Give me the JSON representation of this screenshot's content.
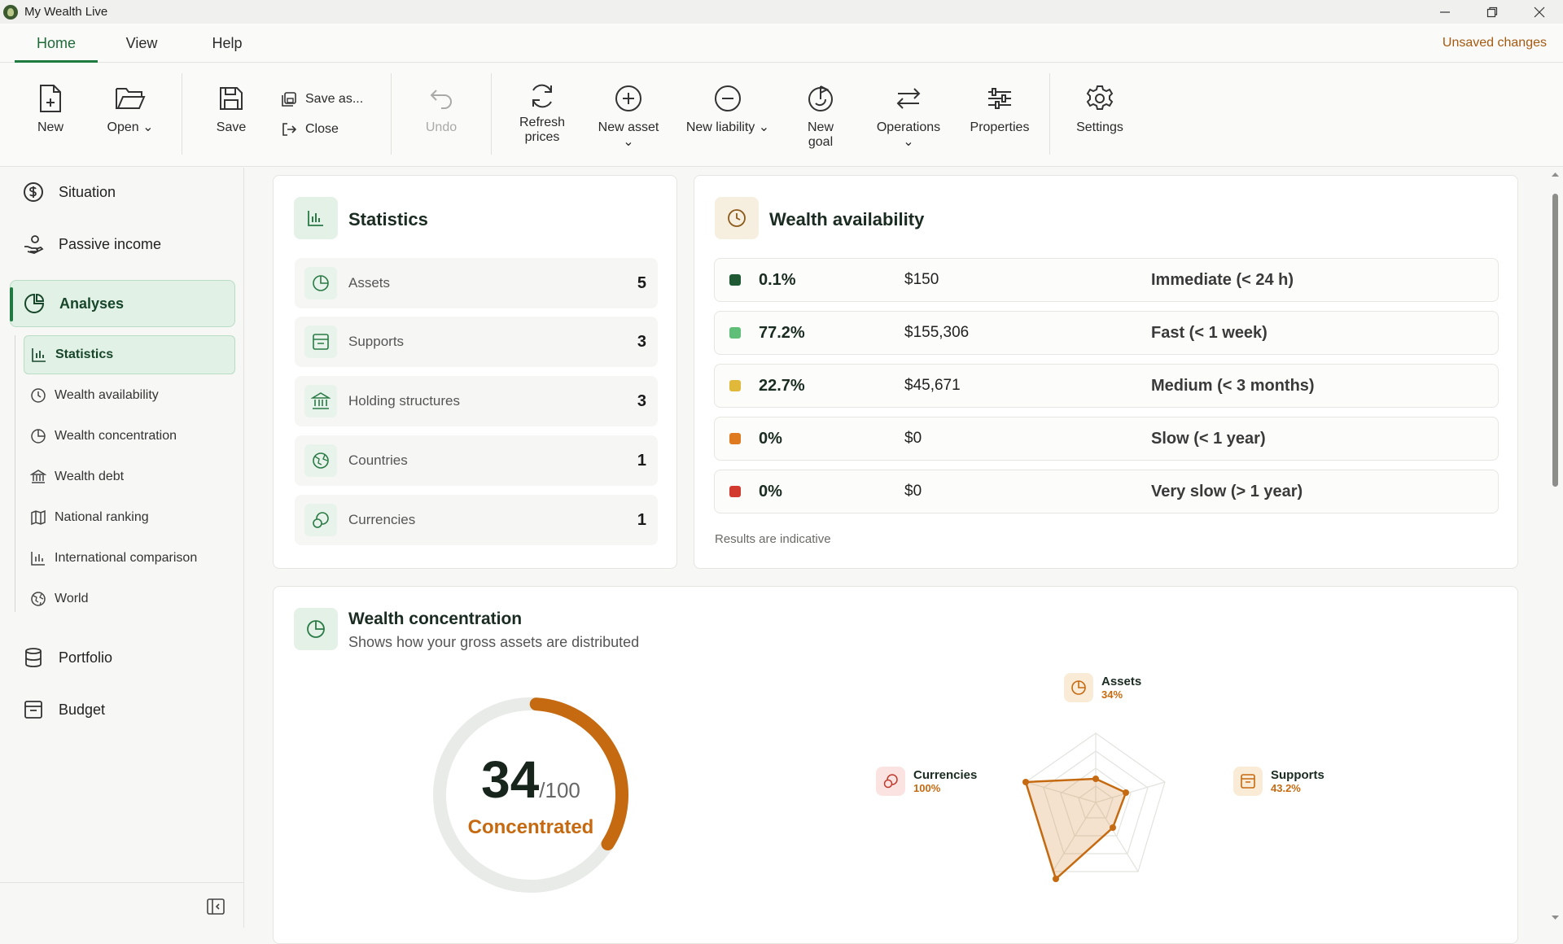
{
  "window": {
    "title": "My Wealth Live"
  },
  "menu": {
    "tabs": [
      "Home",
      "View",
      "Help"
    ],
    "active_tab": "Home",
    "status": "Unsaved changes"
  },
  "ribbon": {
    "new": "New",
    "open": "Open",
    "save": "Save",
    "save_as": "Save as...",
    "close": "Close",
    "undo": "Undo",
    "refresh": "Refresh prices",
    "new_asset": "New asset",
    "new_liability": "New liability",
    "new_goal": "New goal",
    "operations": "Operations",
    "properties": "Properties",
    "settings": "Settings"
  },
  "sidebar": {
    "items": [
      "Situation",
      "Passive income",
      "Analyses",
      "Portfolio",
      "Budget"
    ],
    "active": "Analyses",
    "sub_items": [
      "Statistics",
      "Wealth availability",
      "Wealth concentration",
      "Wealth debt",
      "National ranking",
      "International comparison",
      "World"
    ],
    "active_sub": "Statistics"
  },
  "statistics": {
    "title": "Statistics",
    "rows": [
      {
        "label": "Assets",
        "value": "5",
        "icon": "pie-icon"
      },
      {
        "label": "Supports",
        "value": "3",
        "icon": "archive-icon"
      },
      {
        "label": "Holding structures",
        "value": "3",
        "icon": "bank-icon"
      },
      {
        "label": "Countries",
        "value": "1",
        "icon": "globe-icon"
      },
      {
        "label": "Currencies",
        "value": "1",
        "icon": "coins-icon"
      }
    ]
  },
  "availability": {
    "title": "Wealth availability",
    "rows": [
      {
        "pct": "0.1%",
        "amount": "$150",
        "speed": "Immediate (< 24 h)",
        "color": "#1f5a35"
      },
      {
        "pct": "77.2%",
        "amount": "$155,306",
        "speed": "Fast (< 1 week)",
        "color": "#5fbf78"
      },
      {
        "pct": "22.7%",
        "amount": "$45,671",
        "speed": "Medium (< 3 months)",
        "color": "#e0b83a"
      },
      {
        "pct": "0%",
        "amount": "$0",
        "speed": "Slow (< 1 year)",
        "color": "#e07a20"
      },
      {
        "pct": "0%",
        "amount": "$0",
        "speed": "Very slow (> 1 year)",
        "color": "#d23a30"
      }
    ],
    "note": "Results are indicative"
  },
  "concentration": {
    "title": "Wealth concentration",
    "subtitle": "Shows how your gross assets are distributed",
    "score": "34",
    "score_max": "/100",
    "score_value": 34,
    "verdict": "Concentrated",
    "radar": [
      {
        "label": "Assets",
        "value": "34%"
      },
      {
        "label": "Supports",
        "value": "43.2%"
      },
      {
        "label": "Currencies",
        "value": "100%"
      }
    ]
  }
}
